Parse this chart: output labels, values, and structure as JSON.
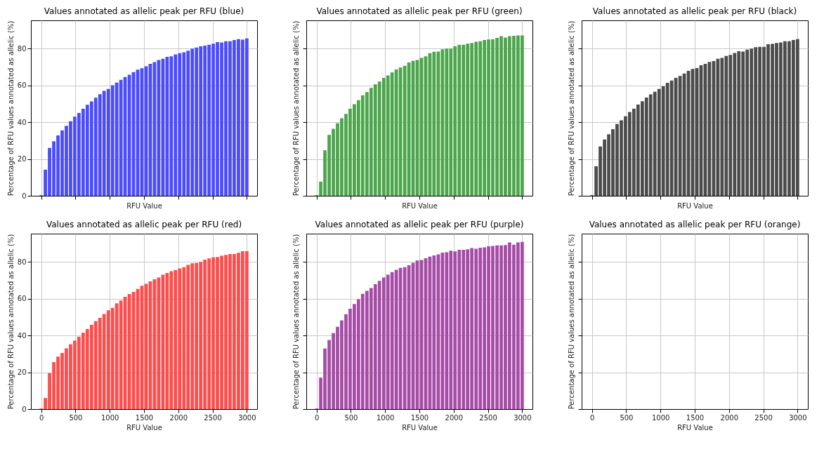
{
  "chart_data": [
    {
      "type": "bar",
      "title": "Values annotated as allelic peak per RFU (blue)",
      "xlabel": "RFU Value",
      "ylabel": "Percentage of RFU values annotated as allelic (%)",
      "x": [
        0,
        61,
        122,
        184,
        245,
        306,
        367,
        429,
        490,
        551,
        612,
        673,
        735,
        796,
        857,
        918,
        980,
        1041,
        1102,
        1163,
        1224,
        1286,
        1347,
        1408,
        1469,
        1531,
        1592,
        1653,
        1714,
        1776,
        1837,
        1898,
        1959,
        2020,
        2082,
        2143,
        2204,
        2265,
        2327,
        2388,
        2449,
        2510,
        2571,
        2633,
        2694,
        2755,
        2816,
        2878,
        2939,
        3000
      ],
      "xlim": [
        -150,
        3150
      ],
      "ylim": [
        0,
        95.3
      ],
      "xticks": [
        0,
        500,
        1000,
        1500,
        2000,
        2500,
        3000
      ],
      "yticks": [
        0,
        20,
        40,
        60,
        80
      ],
      "grid": true,
      "tick_labels": "y",
      "series": [
        {
          "color": "#4b4bff",
          "values": [
            0.3,
            14.2,
            26,
            29.6,
            32.8,
            35.5,
            38,
            40.5,
            43,
            45,
            47.3,
            49.5,
            51.3,
            53.3,
            55.2,
            57,
            58,
            60,
            61.5,
            63,
            64.5,
            65.8,
            67.2,
            68.5,
            69.3,
            70.3,
            71.7,
            72.6,
            73.8,
            74.4,
            75.5,
            75.8,
            76.8,
            77.5,
            78,
            78.8,
            80,
            80.5,
            81.2,
            81.6,
            82.1,
            82.6,
            83.5,
            83.3,
            84,
            84,
            84.6,
            85.1,
            84.8,
            85.5
          ]
        }
      ]
    },
    {
      "type": "bar",
      "title": "Values annotated as allelic peak per RFU (green)",
      "xlabel": "RFU Value",
      "ylabel": "Percentage of RFU values annotated as allelic (%)",
      "x": [
        0,
        61,
        122,
        184,
        245,
        306,
        367,
        429,
        490,
        551,
        612,
        673,
        735,
        796,
        857,
        918,
        980,
        1041,
        1102,
        1163,
        1224,
        1286,
        1347,
        1408,
        1469,
        1531,
        1592,
        1653,
        1714,
        1776,
        1837,
        1898,
        1959,
        2020,
        2082,
        2143,
        2204,
        2265,
        2327,
        2388,
        2449,
        2510,
        2571,
        2633,
        2694,
        2755,
        2816,
        2878,
        2939,
        3000
      ],
      "xlim": [
        -150,
        3150
      ],
      "ylim": [
        0,
        95.3
      ],
      "xticks": [
        0,
        500,
        1000,
        1500,
        2000,
        2500,
        3000
      ],
      "yticks": [
        0,
        20,
        40,
        60,
        80
      ],
      "grid": true,
      "tick_labels": false,
      "series": [
        {
          "color": "#4ca64c",
          "values": [
            0.3,
            7.7,
            24.7,
            33.1,
            36.4,
            39.4,
            42.1,
            44.5,
            47.3,
            49.7,
            51.9,
            54.6,
            56.3,
            58.6,
            60.5,
            62,
            64,
            65.4,
            67,
            68.6,
            69.7,
            70.6,
            72.4,
            73.3,
            73.8,
            74.9,
            75.8,
            77.5,
            78.2,
            78.3,
            79.6,
            80,
            80,
            81.2,
            82.1,
            82.1,
            82.6,
            83,
            83.7,
            84,
            84.6,
            84.9,
            85,
            85.8,
            86.7,
            86,
            86.7,
            86.9,
            87.1,
            87.1
          ]
        }
      ]
    },
    {
      "type": "bar",
      "title": "Values annotated as allelic peak per RFU (black)",
      "xlabel": "RFU Value",
      "ylabel": "Percentage of RFU values annotated as allelic (%)",
      "x": [
        0,
        61,
        122,
        184,
        245,
        306,
        367,
        429,
        490,
        551,
        612,
        673,
        735,
        796,
        857,
        918,
        980,
        1041,
        1102,
        1163,
        1224,
        1286,
        1347,
        1408,
        1469,
        1531,
        1592,
        1653,
        1714,
        1776,
        1837,
        1898,
        1959,
        2020,
        2082,
        2143,
        2204,
        2265,
        2327,
        2388,
        2449,
        2510,
        2571,
        2633,
        2694,
        2755,
        2816,
        2878,
        2939,
        3000
      ],
      "xlim": [
        -150,
        3150
      ],
      "ylim": [
        0,
        95.3
      ],
      "xticks": [
        0,
        500,
        1000,
        1500,
        2000,
        2500,
        3000
      ],
      "yticks": [
        0,
        20,
        40,
        60,
        80
      ],
      "grid": true,
      "tick_labels": false,
      "series": [
        {
          "color": "#4c4c4c",
          "values": [
            0.3,
            16,
            26.8,
            30.6,
            33.4,
            36.2,
            39,
            41,
            43.2,
            45.5,
            47.3,
            49.6,
            51.4,
            53.4,
            55.1,
            56.5,
            58,
            59.5,
            61.4,
            62.6,
            64,
            65.1,
            66.4,
            67.9,
            68.9,
            69.4,
            70.9,
            71.7,
            72.7,
            73.2,
            74.4,
            74.9,
            76,
            76.5,
            77.6,
            78.5,
            78.3,
            79.4,
            80,
            80.7,
            80.9,
            80.9,
            82.3,
            82.5,
            83,
            83.3,
            84,
            84,
            84.6,
            85.1
          ]
        }
      ]
    },
    {
      "type": "bar",
      "title": "Values annotated as allelic peak per RFU (red)",
      "xlabel": "RFU Value",
      "ylabel": "Percentage of RFU values annotated as allelic (%)",
      "x": [
        0,
        61,
        122,
        184,
        245,
        306,
        367,
        429,
        490,
        551,
        612,
        673,
        735,
        796,
        857,
        918,
        980,
        1041,
        1102,
        1163,
        1224,
        1286,
        1347,
        1408,
        1469,
        1531,
        1592,
        1653,
        1714,
        1776,
        1837,
        1898,
        1959,
        2020,
        2082,
        2143,
        2204,
        2265,
        2327,
        2388,
        2449,
        2510,
        2571,
        2633,
        2694,
        2755,
        2816,
        2878,
        2939,
        3000
      ],
      "xlim": [
        -150,
        3150
      ],
      "ylim": [
        0,
        95.3
      ],
      "xticks": [
        0,
        500,
        1000,
        1500,
        2000,
        2500,
        3000
      ],
      "yticks": [
        0,
        20,
        40,
        60,
        80
      ],
      "grid": true,
      "series": [
        {
          "color": "#ff4c4c",
          "values": [
            0.3,
            6,
            19.5,
            25.5,
            28.5,
            30.5,
            33,
            35.2,
            37.2,
            39.3,
            41.5,
            43.5,
            45.8,
            47.8,
            49.6,
            51.7,
            53.7,
            55,
            57.5,
            59,
            61,
            62.5,
            63.7,
            65.3,
            67,
            68,
            69.4,
            70.5,
            71.5,
            73,
            74,
            74.9,
            75.6,
            76.4,
            77.1,
            78.3,
            79.2,
            79.4,
            80,
            81.2,
            81.9,
            82.4,
            82.6,
            83.3,
            83.8,
            84.2,
            84.2,
            84.9,
            85.8,
            85.8
          ]
        }
      ]
    },
    {
      "type": "bar",
      "title": "Values annotated as allelic peak per RFU (purple)",
      "xlabel": "RFU Value",
      "ylabel": "Percentage of RFU values annotated as allelic (%)",
      "x": [
        0,
        61,
        122,
        184,
        245,
        306,
        367,
        429,
        490,
        551,
        612,
        673,
        735,
        796,
        857,
        918,
        980,
        1041,
        1102,
        1163,
        1224,
        1286,
        1347,
        1408,
        1469,
        1531,
        1592,
        1653,
        1714,
        1776,
        1837,
        1898,
        1959,
        2020,
        2082,
        2143,
        2204,
        2265,
        2327,
        2388,
        2449,
        2510,
        2571,
        2633,
        2694,
        2755,
        2816,
        2878,
        2939,
        3000
      ],
      "xlim": [
        -150,
        3150
      ],
      "ylim": [
        0,
        95.3
      ],
      "xticks": [
        0,
        500,
        1000,
        1500,
        2000,
        2500,
        3000
      ],
      "yticks": [
        0,
        20,
        40,
        60,
        80
      ],
      "grid": true,
      "tick_labels": "x",
      "series": [
        {
          "color": "#a64ca6",
          "values": [
            0.3,
            17.1,
            32.9,
            37.5,
            41.3,
            44.7,
            48.2,
            51.6,
            54.5,
            57.1,
            59.7,
            62.6,
            64.2,
            65.8,
            67.9,
            69.7,
            71.5,
            73,
            74.4,
            75.7,
            76.7,
            77.1,
            78.1,
            79.5,
            80.7,
            81,
            82,
            82.8,
            83.5,
            84.1,
            85,
            85.2,
            86.1,
            85.7,
            86.5,
            86.5,
            86.8,
            87.5,
            87.1,
            87.7,
            87.9,
            88.4,
            88.6,
            88.9,
            88.9,
            89.1,
            90.5,
            89.3,
            90.5,
            90.8
          ]
        }
      ]
    },
    {
      "type": "bar",
      "title": "Values annotated as allelic peak per RFU (orange)",
      "xlabel": "RFU Value",
      "ylabel": "Percentage of RFU values annotated as allelic (%)",
      "xlim": [
        -150,
        3150
      ],
      "ylim": [
        0,
        95.3
      ],
      "xticks": [
        0,
        500,
        1000,
        1500,
        2000,
        2500,
        3000
      ],
      "yticks": [
        0,
        20,
        40,
        60,
        80
      ],
      "grid": true,
      "tick_labels": "x"
    }
  ]
}
